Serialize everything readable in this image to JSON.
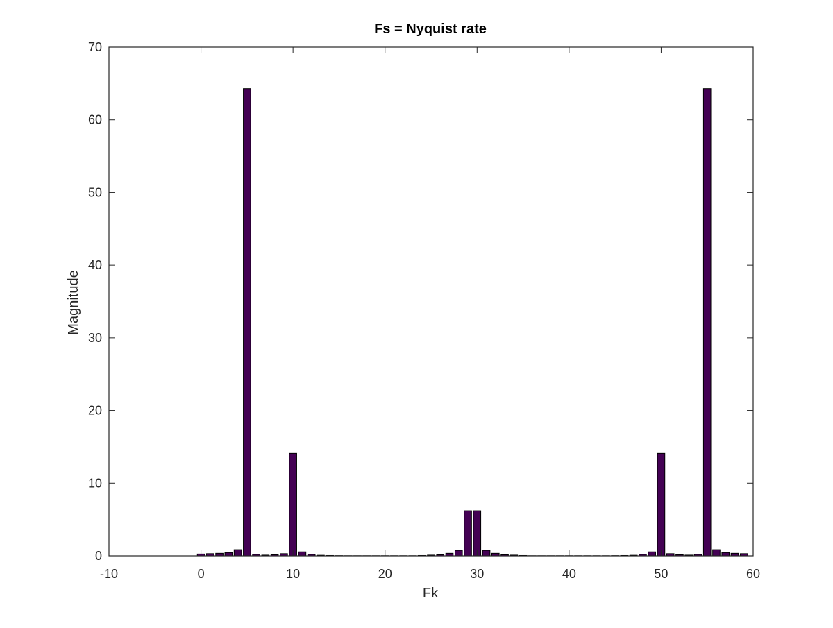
{
  "chart_data": {
    "type": "bar",
    "title": "Fs = Nyquist rate",
    "xlabel": "Fk",
    "ylabel": "Magnitude",
    "xlim": [
      -10,
      60
    ],
    "ylim": [
      0,
      70
    ],
    "xticks": [
      -10,
      0,
      10,
      20,
      30,
      40,
      50,
      60
    ],
    "yticks": [
      0,
      10,
      20,
      30,
      40,
      50,
      60,
      70
    ],
    "grid": false,
    "bar_width": 0.8,
    "colors": {
      "bar_fill": "#440154",
      "bar_stroke": "#000000",
      "axis": "#262626"
    },
    "x": [
      0,
      1,
      2,
      3,
      4,
      5,
      6,
      7,
      8,
      9,
      10,
      11,
      12,
      13,
      14,
      15,
      16,
      17,
      18,
      19,
      20,
      21,
      22,
      23,
      24,
      25,
      26,
      27,
      28,
      29,
      30,
      31,
      32,
      33,
      34,
      35,
      36,
      37,
      38,
      39,
      40,
      41,
      42,
      43,
      44,
      45,
      46,
      47,
      48,
      49,
      50,
      51,
      52,
      53,
      54,
      55,
      56,
      57,
      58,
      59
    ],
    "values": [
      0.25,
      0.3,
      0.35,
      0.45,
      0.85,
      64.3,
      0.2,
      0.1,
      0.15,
      0.3,
      14.1,
      0.55,
      0.2,
      0.08,
      0.05,
      0.03,
      0.02,
      0.02,
      0.02,
      0.02,
      0.02,
      0.02,
      0.02,
      0.02,
      0.05,
      0.1,
      0.15,
      0.35,
      0.75,
      6.2,
      6.2,
      0.75,
      0.35,
      0.15,
      0.1,
      0.05,
      0.02,
      0.02,
      0.02,
      0.02,
      0.02,
      0.02,
      0.02,
      0.02,
      0.02,
      0.03,
      0.05,
      0.08,
      0.2,
      0.55,
      14.1,
      0.3,
      0.15,
      0.1,
      0.2,
      64.3,
      0.85,
      0.45,
      0.35,
      0.3
    ]
  }
}
